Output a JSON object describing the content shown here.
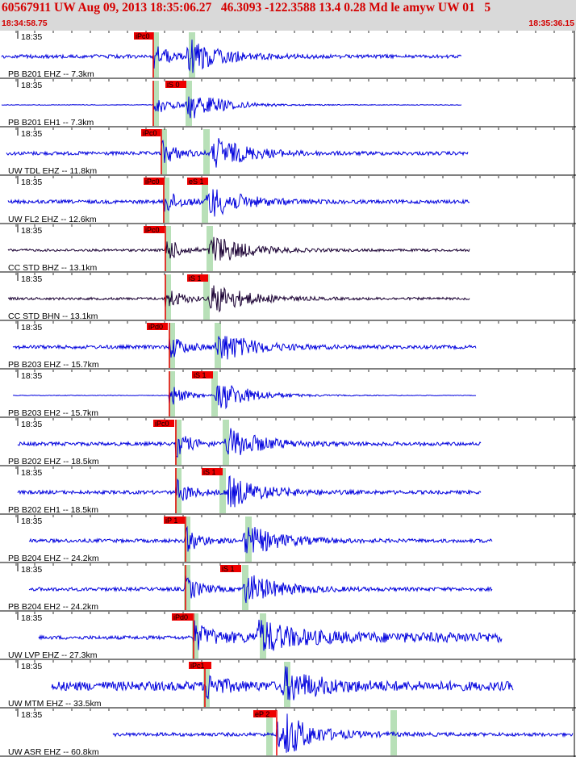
{
  "header": {
    "title": "60567911 UW Aug 09, 2013 18:35:06.27   46.3093 -122.3588 13.4 0.28 Md le amyw UW 01   5",
    "start_time": "18:34:58.75",
    "end_time": "18:35:36.15"
  },
  "colors": {
    "header_bg": "#d9d9d9",
    "header_text": "#d40000",
    "trace_blue": "#0000dd",
    "trace_dark": "#1a0033",
    "pick_red": "#ee0000",
    "window_green": "#b8e0b8"
  },
  "channels": [
    {
      "time": "18:35",
      "label": "PB B201 EHZ -- 7.3km",
      "pick": "iPc0",
      "trace_color": "blue"
    },
    {
      "time": "18:35",
      "label": "PB B201 EH1 -- 7.3km",
      "pick": "iS 0",
      "trace_color": "blue"
    },
    {
      "time": "18:35",
      "label": "UW TDL EHZ -- 11.8km",
      "pick": "iPc0",
      "trace_color": "blue"
    },
    {
      "time": "18:35",
      "label": "UW FL2 EHZ -- 12.6km",
      "pick": "iPc0",
      "pick2": "eS 1",
      "trace_color": "blue"
    },
    {
      "time": "18:35",
      "label": "CC STD BHZ -- 13.1km",
      "pick": "iPc0",
      "trace_color": "dark"
    },
    {
      "time": "18:35",
      "label": "CC STD BHN -- 13.1km",
      "pick": "iS 1",
      "trace_color": "dark"
    },
    {
      "time": "18:35",
      "label": "PB B203 EHZ -- 15.7km",
      "pick": "iPd0",
      "trace_color": "blue"
    },
    {
      "time": "18:35",
      "label": "PB B203 EH2 -- 15.7km",
      "pick": "iS 1",
      "trace_color": "blue"
    },
    {
      "time": "18:35",
      "label": "PB B202 EHZ -- 18.5km",
      "pick": "iPc0",
      "trace_color": "blue"
    },
    {
      "time": "18:35",
      "label": "PB B202 EH1 -- 18.5km",
      "pick": "iS 1",
      "trace_color": "blue"
    },
    {
      "time": "18:35",
      "label": "PB B204 EHZ -- 24.2km",
      "pick": "iP 1",
      "trace_color": "blue"
    },
    {
      "time": "18:35",
      "label": "PB B204 EH2 -- 24.2km",
      "pick": "iS 1",
      "trace_color": "blue"
    },
    {
      "time": "18:35",
      "label": "UW LVP EHZ -- 27.3km",
      "pick": "iPd0",
      "trace_color": "blue"
    },
    {
      "time": "18:35",
      "label": "UW MTM EHZ -- 33.5km",
      "pick": "iPc1",
      "trace_color": "blue"
    },
    {
      "time": "18:35",
      "label": "UW ASR EHZ -- 60.8km",
      "pick": "eP 2",
      "trace_color": "blue"
    }
  ]
}
